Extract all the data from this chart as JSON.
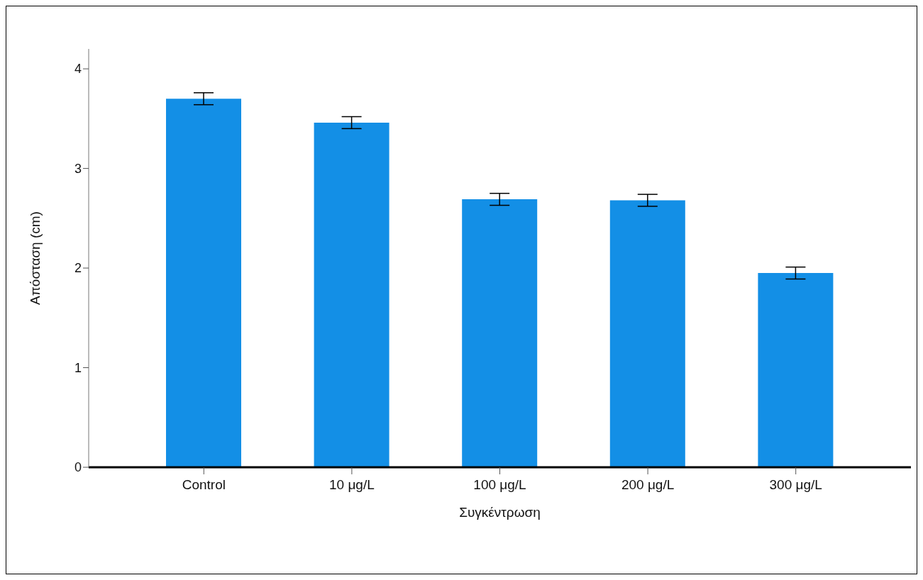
{
  "chart_data": {
    "type": "bar",
    "xlabel": "Συγκέντρωση",
    "ylabel": "Απόσταση (cm)",
    "categories": [
      "Control",
      "10 μg/L",
      "100 μg/L",
      "200 μg/L",
      "300 μg/L"
    ],
    "values": [
      3.7,
      3.46,
      2.69,
      2.68,
      1.95
    ],
    "errors": [
      0.06,
      0.06,
      0.06,
      0.06,
      0.06
    ],
    "color": "#138fe6",
    "ylim": [
      0,
      4.2
    ],
    "yticks": [
      0,
      1,
      2,
      3,
      4
    ],
    "grid": false,
    "legend": false
  }
}
